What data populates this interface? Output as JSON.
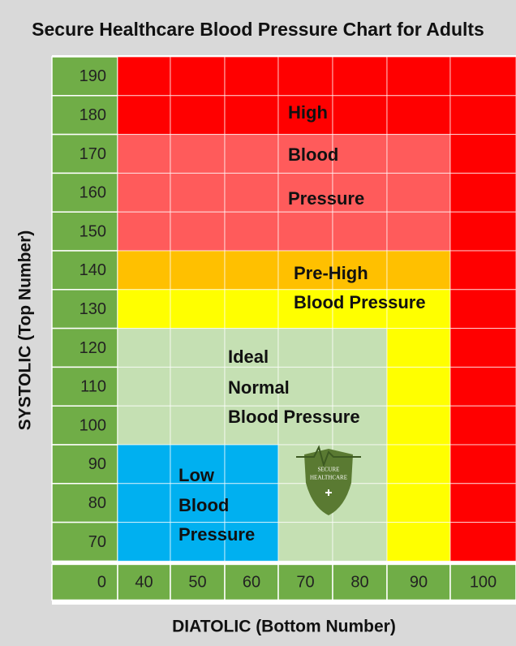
{
  "title": "Secure Healthcare Blood Pressure Chart for Adults",
  "y_axis_label": "SYSTOLIC (Top Number)",
  "x_axis_label": "DIATOLIC (Bottom Number)",
  "rows": [
    190,
    180,
    170,
    160,
    150,
    140,
    130,
    120,
    110,
    100,
    90,
    80,
    70
  ],
  "columns": [
    0,
    40,
    50,
    60,
    70,
    80,
    90,
    100
  ],
  "zones": [
    {
      "lines": [
        "High",
        "Blood",
        "Pressure"
      ]
    },
    {
      "lines": [
        "Pre-High",
        "Blood Pressure"
      ]
    },
    {
      "lines": [
        "Ideal",
        "Normal",
        "Blood Pressure"
      ]
    },
    {
      "lines": [
        "Low",
        "Blood",
        "Pressure"
      ]
    }
  ],
  "logo": {
    "lines": [
      "SECURE",
      "HEALTHCARE"
    ]
  }
}
